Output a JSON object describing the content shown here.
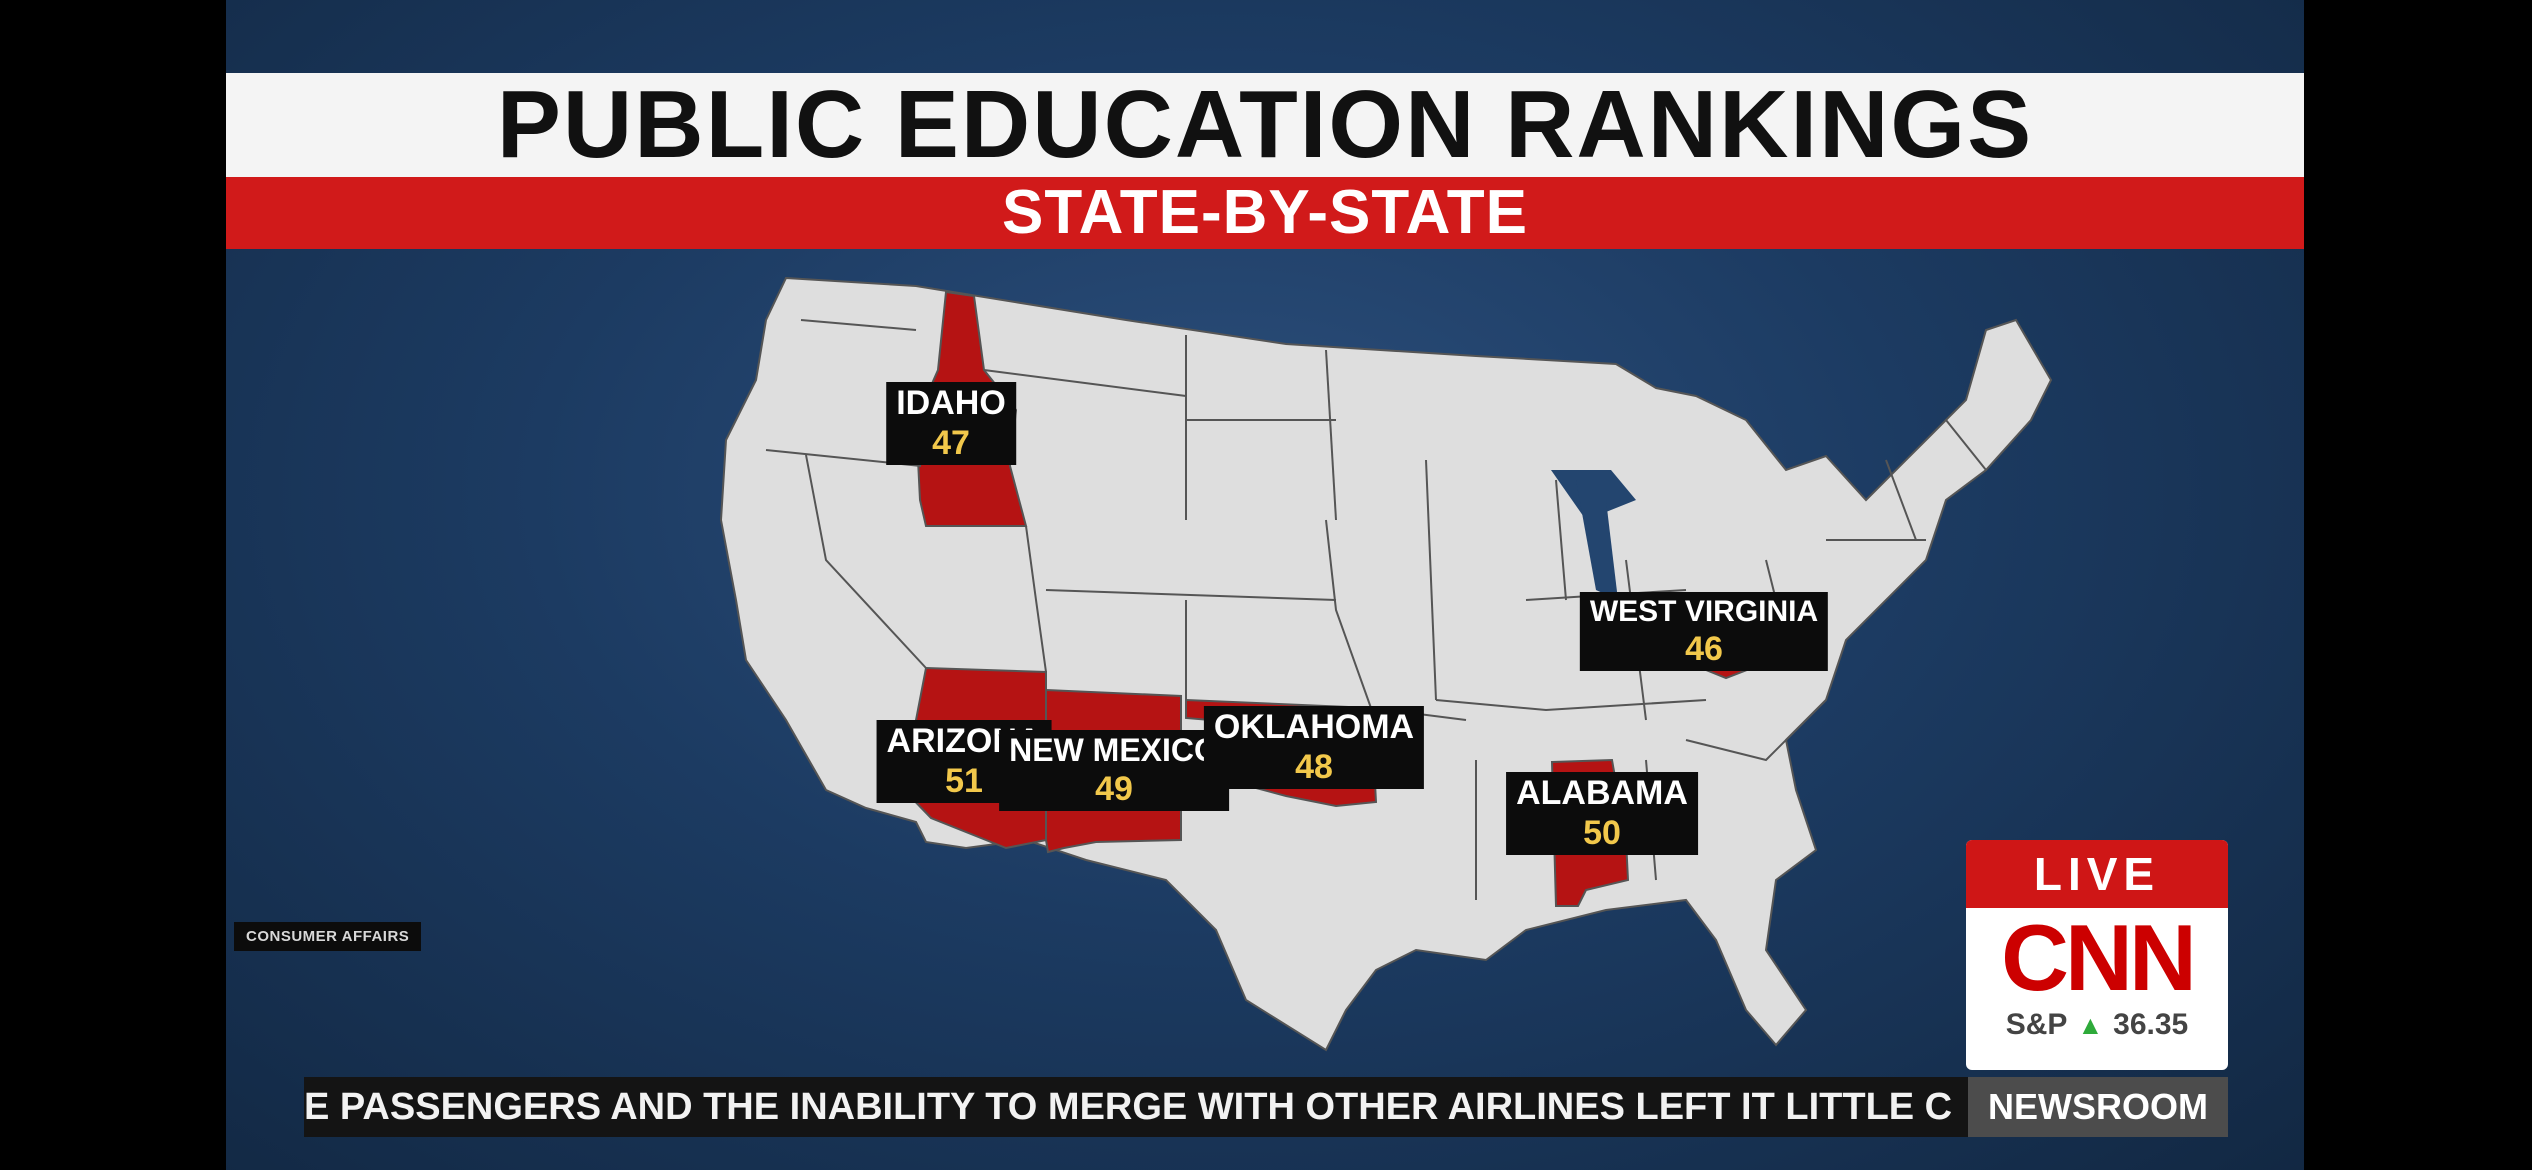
{
  "header": {
    "title": "PUBLIC EDUCATION RANKINGS",
    "subtitle": "STATE-BY-STATE"
  },
  "map": {
    "highlight_color": "#b51313",
    "base_color": "#dedede",
    "ranked_states": [
      {
        "name": "IDAHO",
        "rank": "47"
      },
      {
        "name": "WEST VIRGINIA",
        "rank": "46"
      },
      {
        "name": "ARIZONA",
        "rank": "51"
      },
      {
        "name": "NEW MEXICO",
        "rank": "49"
      },
      {
        "name": "OKLAHOMA",
        "rank": "48"
      },
      {
        "name": "ALABAMA",
        "rank": "50"
      }
    ]
  },
  "source": "CONSUMER AFFAIRS",
  "live_badge": {
    "live_label": "LIVE",
    "logo": "CNN",
    "ticker_symbol": "S&P",
    "ticker_direction": "up-arrow-icon",
    "ticker_value": "36.35"
  },
  "crawl": {
    "text": "E PASSENGERS AND THE INABILITY TO MERGE WITH OTHER AIRLINES LEFT IT LITTLE C",
    "show_name": "NEWSROOM"
  }
}
